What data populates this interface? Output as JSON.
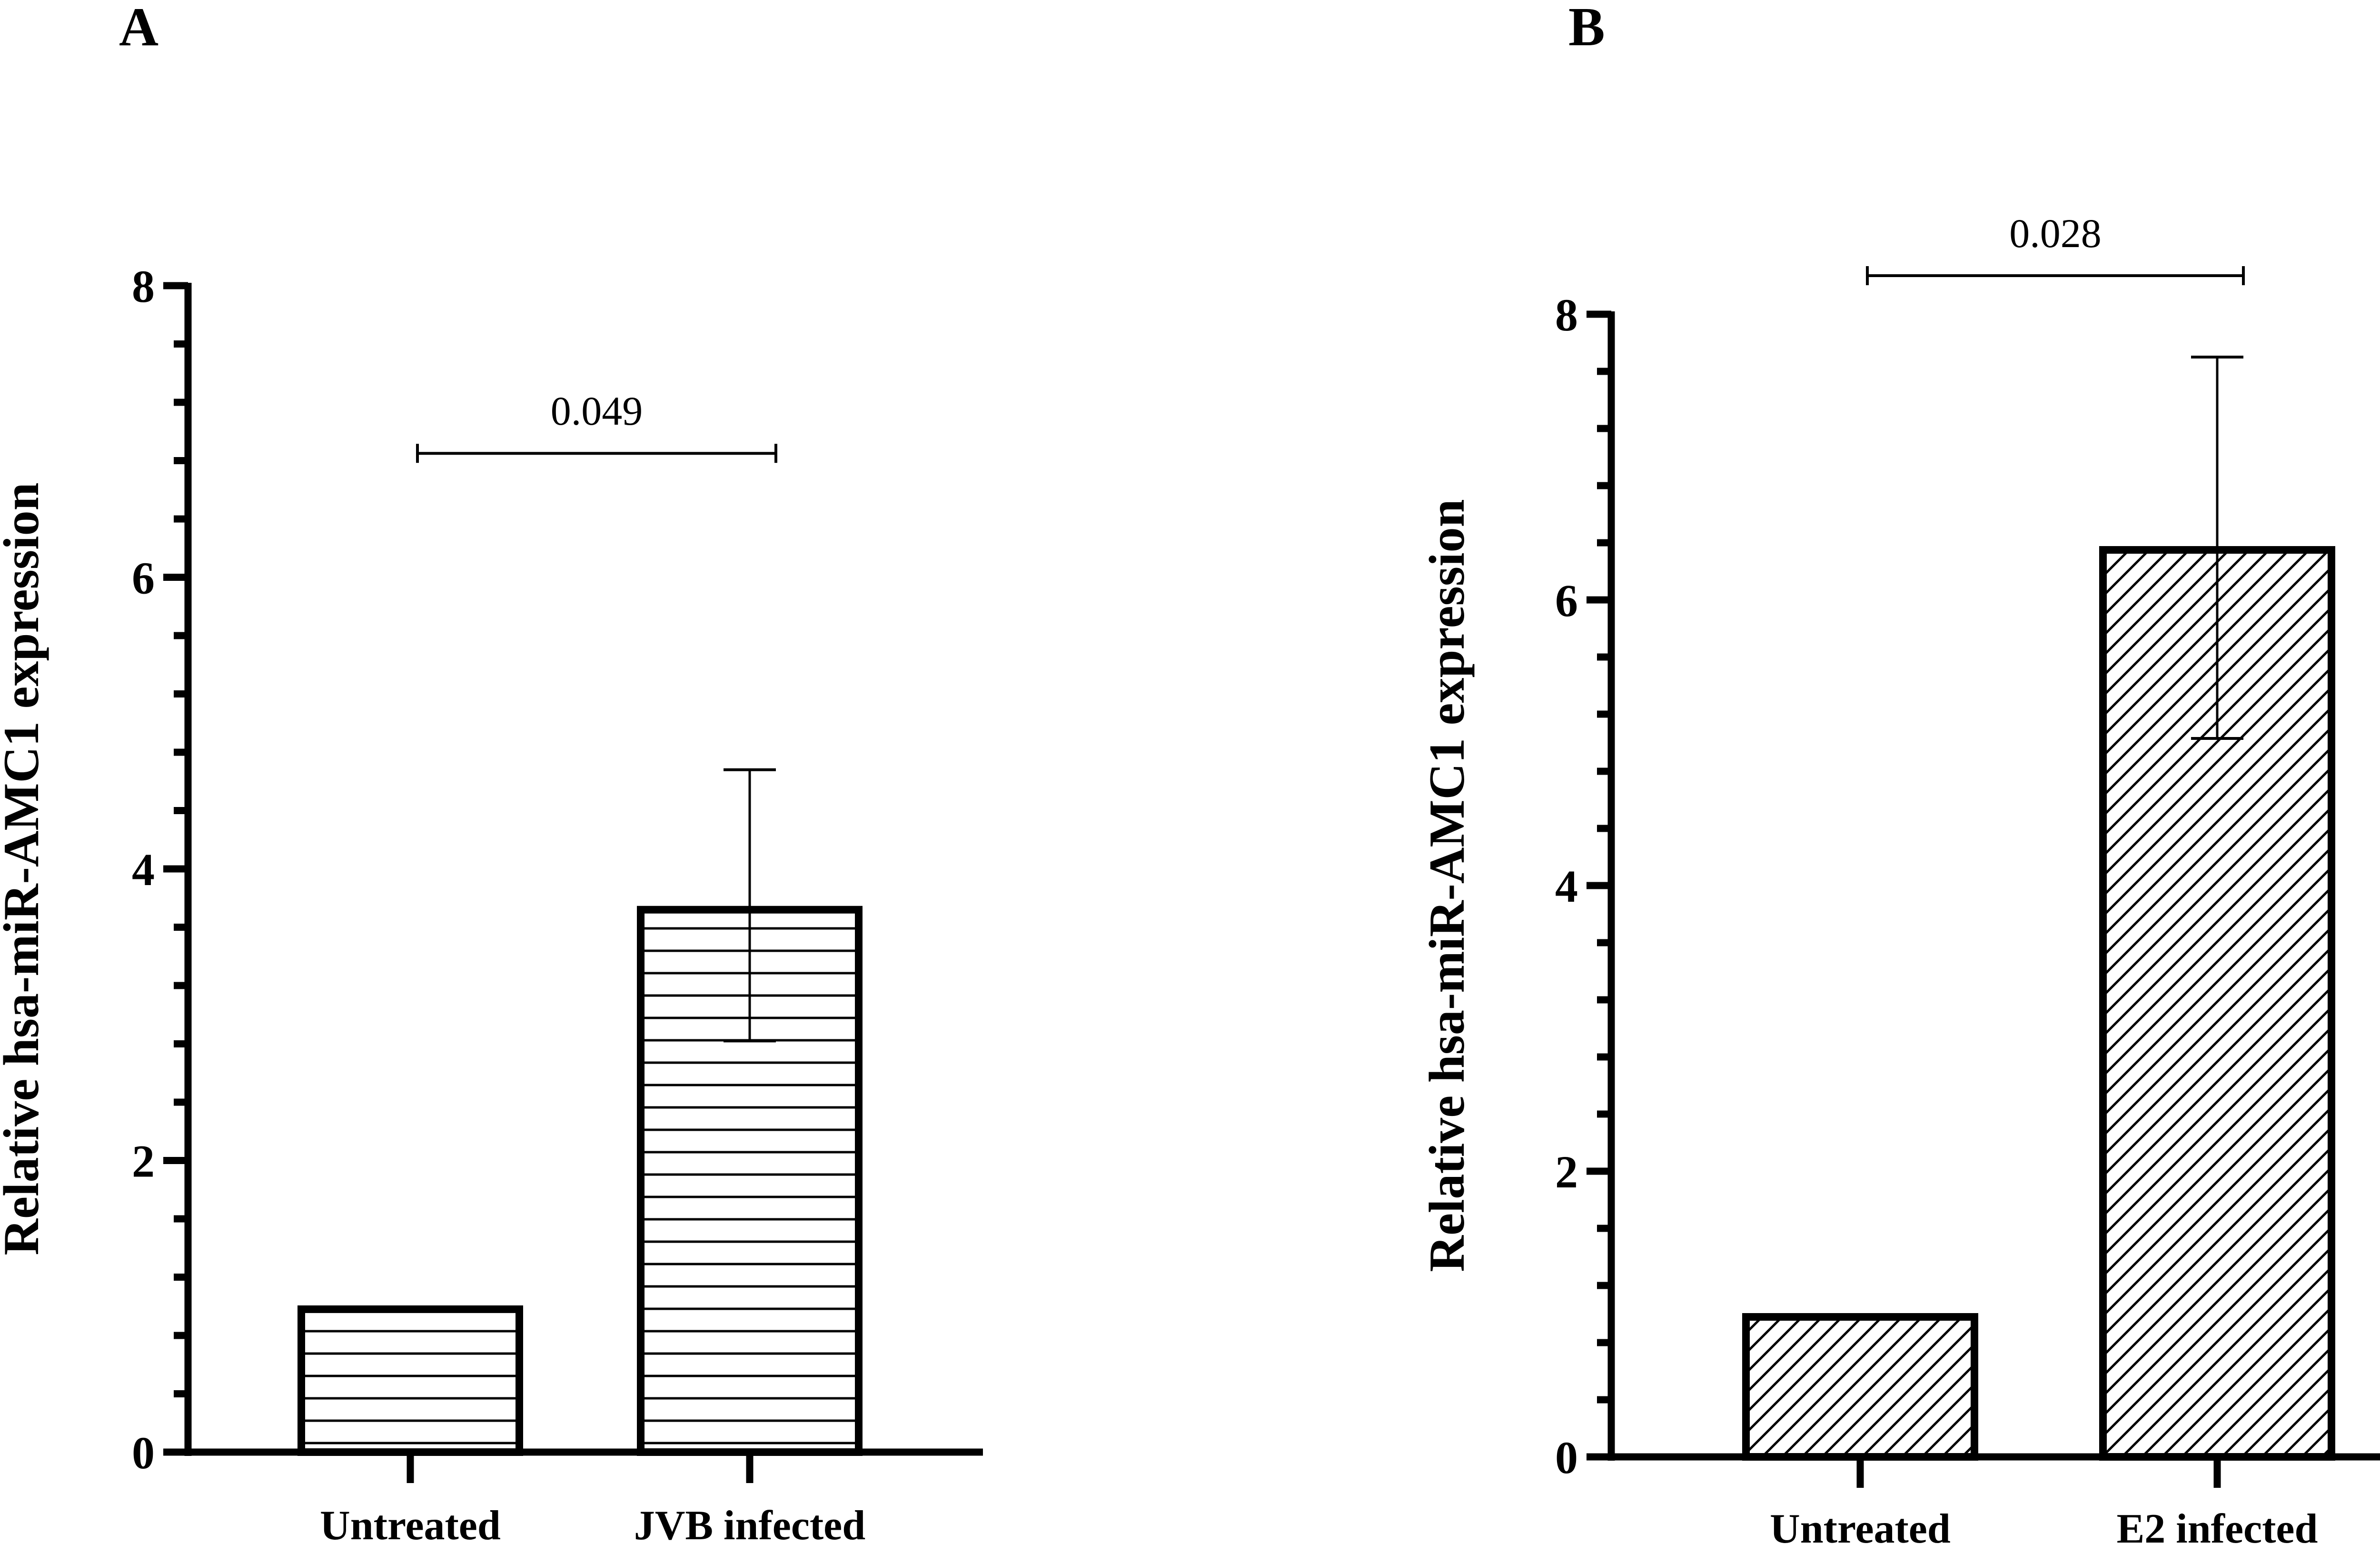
{
  "chart_data": [
    {
      "type": "bar",
      "panel": "A",
      "categories": [
        "Untreated",
        "JVB infected"
      ],
      "values": [
        0.98,
        3.72
      ],
      "error_upper": [
        0,
        4.68
      ],
      "error_lower": [
        0,
        2.82
      ],
      "ylabel": "Relative hsa-miR-AMC1 expression",
      "ylim": [
        0,
        8
      ],
      "yticks": [
        "0",
        "2",
        "4",
        "6",
        "8"
      ],
      "minor_ticks_per_major": 5,
      "annotation": {
        "text": "0.049",
        "between": [
          0,
          1
        ],
        "y": 6.85
      },
      "fill_pattern": "horizontal-lines",
      "grid": false
    },
    {
      "type": "bar",
      "panel": "B",
      "categories": [
        "Untreated",
        "E2 infected"
      ],
      "values": [
        0.98,
        6.35
      ],
      "error_upper": [
        0,
        7.7
      ],
      "error_lower": [
        0,
        5.03
      ],
      "ylabel": "Relative hsa-miR-AMC1 expression",
      "ylim": [
        0,
        8
      ],
      "yticks": [
        "0",
        "2",
        "4",
        "6",
        "8"
      ],
      "minor_ticks_per_major": 5,
      "annotation": {
        "text": "0.028",
        "between": [
          0,
          1
        ],
        "y": 8.27
      },
      "fill_pattern": "diagonal-lines",
      "grid": false
    }
  ]
}
